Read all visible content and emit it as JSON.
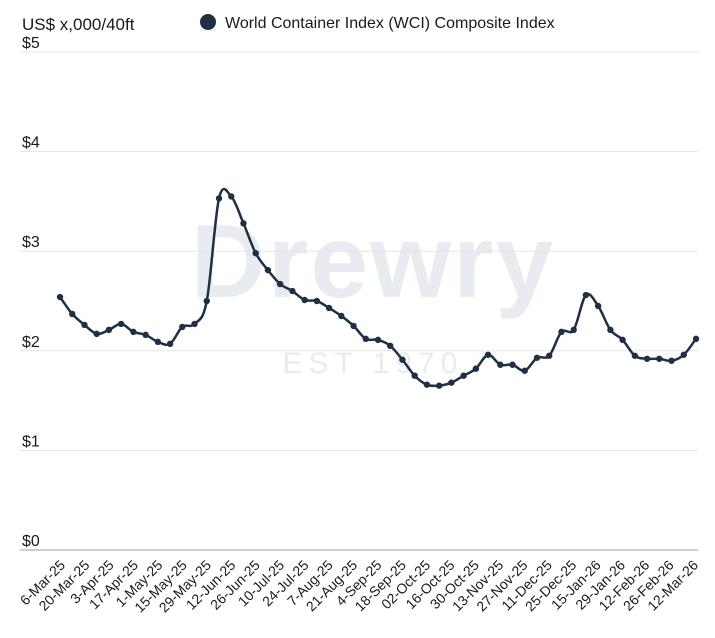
{
  "chart_data": {
    "type": "line",
    "ylabel": "US$ x,000/40ft",
    "watermark": {
      "brand": "Drewry",
      "tagline": "EST 1970"
    },
    "ylim": [
      0,
      5
    ],
    "yticks": [
      {
        "value": 0,
        "label": "$0"
      },
      {
        "value": 1,
        "label": "$1"
      },
      {
        "value": 2,
        "label": "$2"
      },
      {
        "value": 3,
        "label": "$3"
      },
      {
        "value": 4,
        "label": "$4"
      },
      {
        "value": 5,
        "label": "$5"
      }
    ],
    "grid": "horizontal",
    "legend_position": "top",
    "x_labels": [
      "6-Mar-25",
      "20-Mar-25",
      "3-Apr-25",
      "17-Apr-25",
      "1-May-25",
      "15-May-25",
      "29-May-25",
      "12-Jun-25",
      "26-Jun-25",
      "10-Jul-25",
      "24-Jul-25",
      "7-Aug-25",
      "21-Aug-25",
      "4-Sep-25",
      "18-Sep-25",
      "02-Oct-25",
      "16-Oct-25",
      "30-Oct-25",
      "13-Nov-25",
      "27-Nov-25",
      "11-Dec-25",
      "25-Dec-25",
      "15-Jan-26",
      "29-Jan-26",
      "12-Feb-26",
      "26-Feb-26",
      "12-Mar-26"
    ],
    "series": [
      {
        "name": "World Container Index (WCI) Composite Index",
        "color": "#1f3044",
        "values": [
          2.54,
          2.37,
          2.26,
          2.17,
          2.21,
          2.27,
          2.19,
          2.16,
          2.09,
          2.07,
          2.24,
          2.27,
          2.5,
          3.53,
          3.55,
          3.28,
          2.98,
          2.81,
          2.67,
          2.6,
          2.51,
          2.5,
          2.43,
          2.35,
          2.25,
          2.12,
          2.11,
          2.05,
          1.91,
          1.75,
          1.66,
          1.65,
          1.68,
          1.75,
          1.82,
          1.96,
          1.86,
          1.86,
          1.8,
          1.93,
          1.95,
          2.19,
          2.21,
          2.56,
          2.45,
          2.21,
          2.11,
          1.95,
          1.92,
          1.92,
          1.9,
          1.96,
          2.12
        ]
      }
    ]
  }
}
